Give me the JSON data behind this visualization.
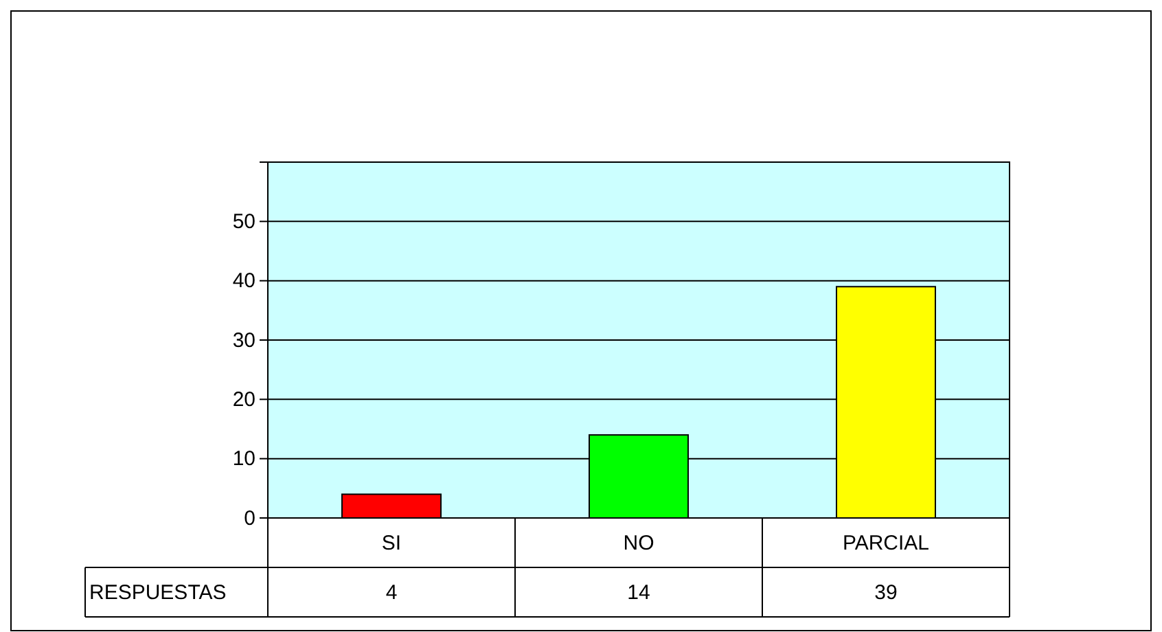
{
  "chart_data": {
    "type": "bar",
    "categories": [
      "SI",
      "NO",
      "PARCIAL"
    ],
    "series": [
      {
        "name": "RESPUESTAS",
        "colors": [
          "#ff0000",
          "#00ff00",
          "#ffff00"
        ],
        "values": [
          4,
          14,
          39
        ]
      }
    ],
    "ylim": [
      0,
      60
    ],
    "yticks": [
      0,
      10,
      20,
      30,
      40,
      50,
      {
        "value": 60,
        "label": null
      }
    ],
    "grid": "y",
    "data_labels": true,
    "legend": "bottom left"
  }
}
